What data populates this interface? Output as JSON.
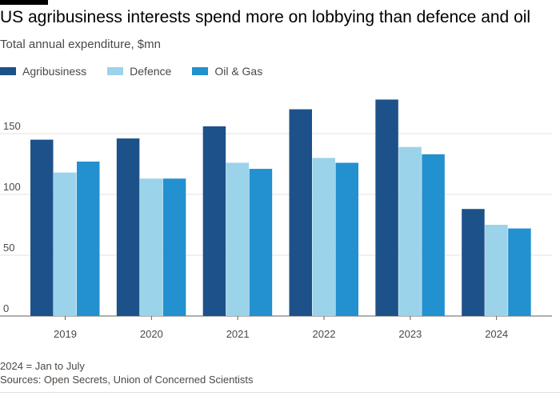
{
  "title": "US agribusiness interests spend more on lobbying than defence and oil",
  "subtitle": "Total annual expenditure, $mn",
  "footnote": "2024 = Jan to July",
  "source": "Sources: Open Secrets, Union of Concerned Scientists",
  "colors": {
    "agribusiness": "#1d5189",
    "defence": "#9bd3ea",
    "oil_gas": "#2390cf"
  },
  "chart_data": {
    "type": "bar",
    "categories": [
      "2019",
      "2020",
      "2021",
      "2022",
      "2023",
      "2024"
    ],
    "series": [
      {
        "name": "Agribusiness",
        "color": "#1d5189",
        "values": [
          145,
          146,
          156,
          170,
          178,
          88
        ]
      },
      {
        "name": "Defence",
        "color": "#9bd3ea",
        "values": [
          118,
          113,
          126,
          130,
          139,
          75
        ]
      },
      {
        "name": "Oil & Gas",
        "color": "#2390cf",
        "values": [
          127,
          113,
          121,
          126,
          133,
          72
        ]
      }
    ],
    "title": "",
    "xlabel": "",
    "ylabel": "",
    "ylim": [
      0,
      180
    ],
    "yticks": [
      "0",
      "50",
      "100",
      "150"
    ],
    "grid": true,
    "legend_position": "top-left"
  }
}
